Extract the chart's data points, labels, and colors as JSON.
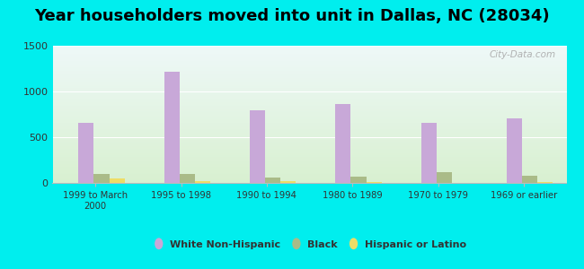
{
  "title": "Year householders moved into unit in Dallas, NC (28034)",
  "categories": [
    "1999 to March\n2000",
    "1995 to 1998",
    "1990 to 1994",
    "1980 to 1989",
    "1970 to 1979",
    "1969 or earlier"
  ],
  "white": [
    660,
    1220,
    790,
    860,
    660,
    710
  ],
  "black": [
    100,
    100,
    60,
    65,
    120,
    75
  ],
  "hispanic": [
    50,
    20,
    20,
    5,
    0,
    5
  ],
  "white_color": "#c8a8d8",
  "black_color": "#aabb88",
  "hispanic_color": "#eedd66",
  "bg_outer": "#00eeee",
  "bg_plot_top": "#d0f0f0",
  "bg_plot_bottom": "#d8f0d0",
  "ylim": [
    0,
    1500
  ],
  "yticks": [
    0,
    500,
    1000,
    1500
  ],
  "bar_width": 0.18,
  "title_fontsize": 13,
  "watermark": "City-Data.com"
}
